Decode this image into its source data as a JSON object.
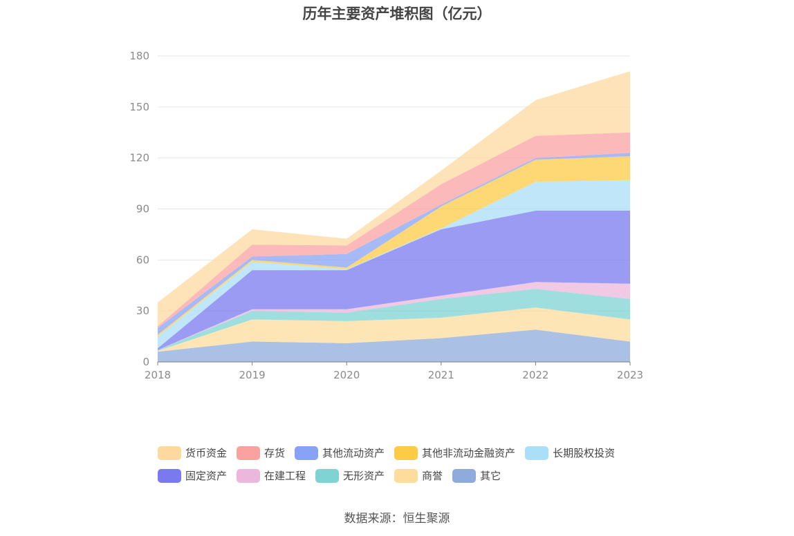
{
  "chart_data": {
    "type": "area",
    "stacked": true,
    "title": "历年主要资产堆积图（亿元）",
    "x": [
      "2018",
      "2019",
      "2020",
      "2021",
      "2022",
      "2023"
    ],
    "ylim": [
      0,
      180
    ],
    "yticks": [
      "0",
      "30",
      "60",
      "90",
      "120",
      "150",
      "180"
    ],
    "series": [
      {
        "name": "其它",
        "color": "#8fabdc",
        "values": [
          6,
          12,
          11,
          14,
          19,
          12
        ]
      },
      {
        "name": "商誉",
        "color": "#fddc9e",
        "values": [
          0.5,
          13,
          13,
          12,
          13,
          13
        ]
      },
      {
        "name": "无形资产",
        "color": "#7fd3d3",
        "values": [
          0.5,
          5,
          5,
          11,
          11,
          12
        ]
      },
      {
        "name": "在建工程",
        "color": "#ecb7dc",
        "values": [
          0,
          1,
          2,
          2,
          4,
          9
        ]
      },
      {
        "name": "固定资产",
        "color": "#7a7af0",
        "values": [
          1,
          23,
          23,
          39,
          42,
          43
        ]
      },
      {
        "name": "长期股权投资",
        "color": "#a9dff7",
        "values": [
          7,
          5,
          0.5,
          0.5,
          17,
          18
        ]
      },
      {
        "name": "其他非流动金融资产",
        "color": "#fecb47",
        "values": [
          1,
          1,
          1,
          13,
          13,
          14
        ]
      },
      {
        "name": "其他流动资产",
        "color": "#88a3f5",
        "values": [
          4,
          2,
          8,
          1,
          1,
          2
        ]
      },
      {
        "name": "存货",
        "color": "#f9a3a1",
        "values": [
          1,
          7,
          5,
          12,
          13,
          12
        ]
      },
      {
        "name": "货币资金",
        "color": "#fdd9a0",
        "values": [
          14,
          9,
          4,
          8,
          21,
          36
        ]
      }
    ],
    "legend": [
      [
        "货币资金",
        "存货",
        "其他流动资产",
        "其他非流动金融资产",
        "长期股权投资"
      ],
      [
        "固定资产",
        "在建工程",
        "无形资产",
        "商誉",
        "其它"
      ]
    ],
    "legend_colors": {
      "货币资金": "#fdd9a0",
      "存货": "#f9a3a1",
      "其他流动资产": "#88a3f5",
      "其他非流动金融资产": "#fecb47",
      "长期股权投资": "#a9dff7",
      "固定资产": "#7a7af0",
      "在建工程": "#ecb7dc",
      "无形资产": "#7fd3d3",
      "商誉": "#fddc9e",
      "其它": "#8fabdc"
    },
    "source": "数据来源：恒生聚源"
  }
}
